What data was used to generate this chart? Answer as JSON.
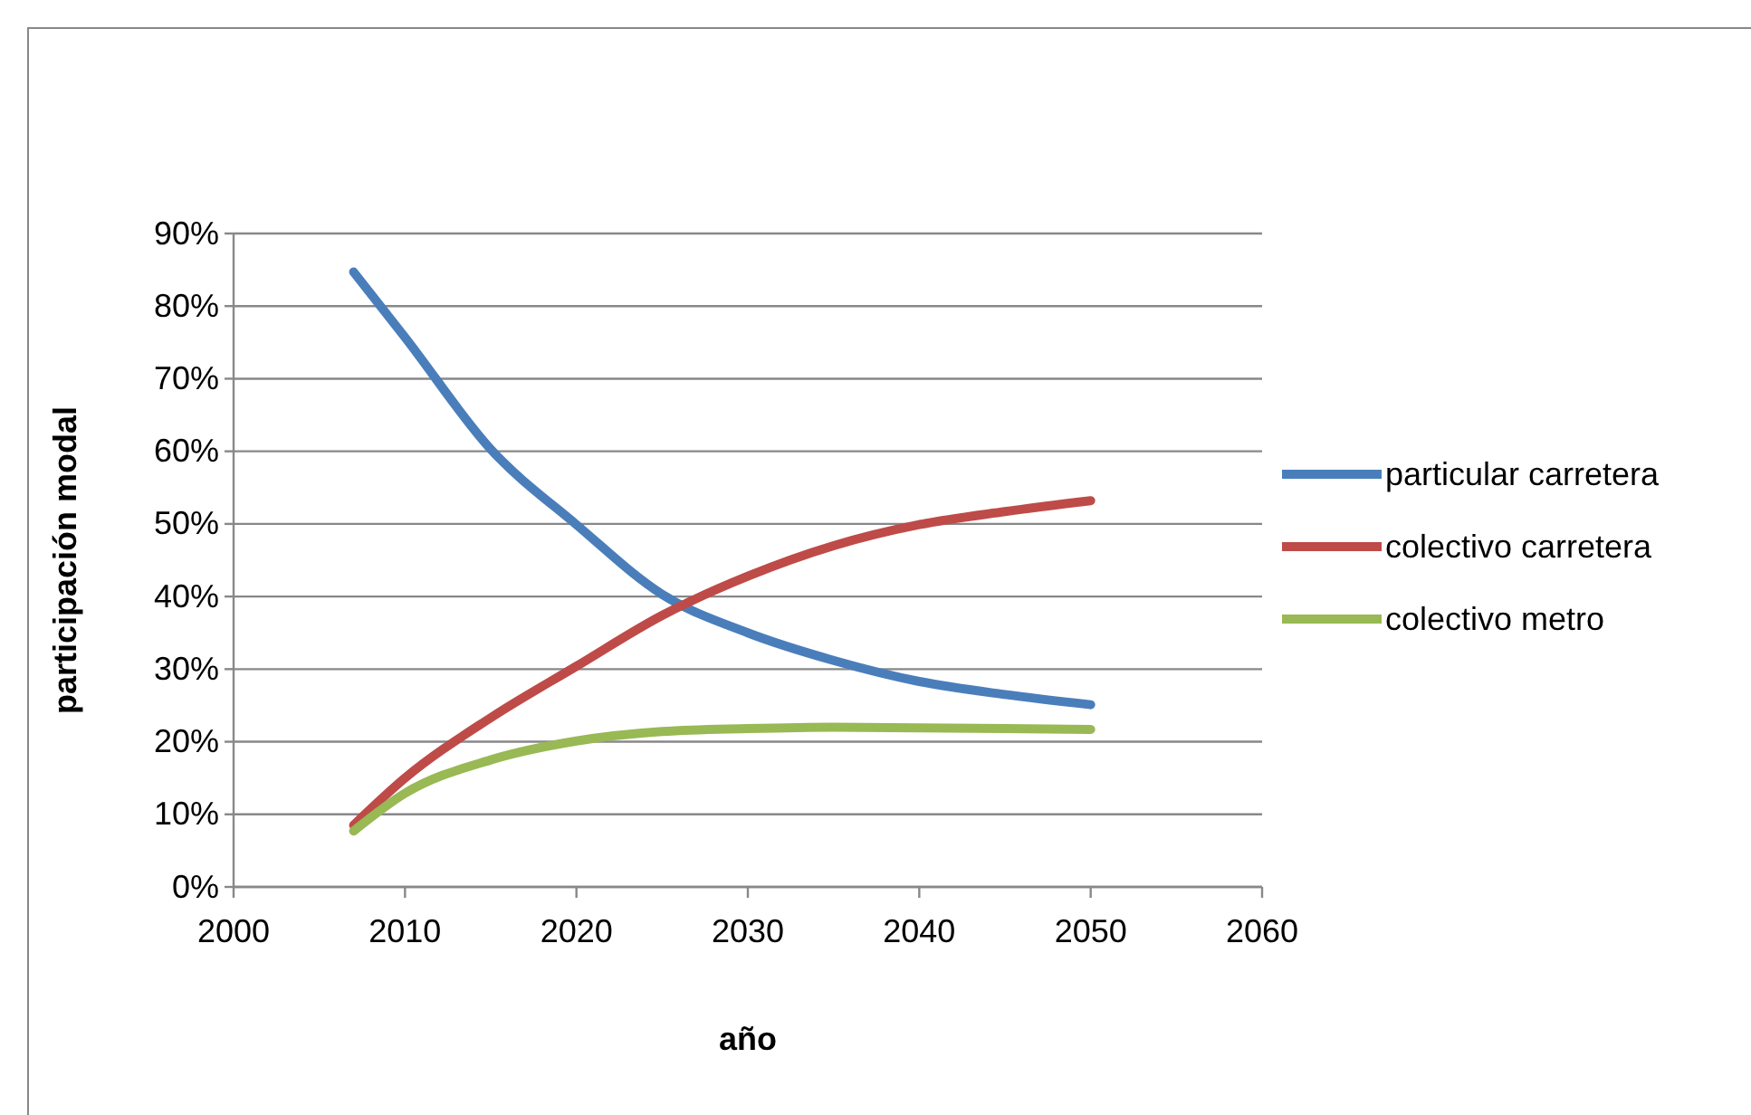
{
  "chart_data": {
    "type": "line",
    "xlabel": "año",
    "ylabel": "participación  modal",
    "x": [
      2007,
      2010,
      2015,
      2020,
      2025,
      2030,
      2035,
      2040,
      2045,
      2050
    ],
    "series": [
      {
        "name": "particular carretera",
        "color": "#4a7ebb",
        "values": [
          84.7,
          75.7,
          60.3,
          49.9,
          40.3,
          35,
          31.2,
          28.3,
          26.5,
          25.1
        ]
      },
      {
        "name": "colectivo carretera",
        "color": "#be4b48",
        "values": [
          8.5,
          15,
          23.3,
          30.4,
          37.4,
          42.8,
          47,
          49.9,
          51.7,
          53.2
        ]
      },
      {
        "name": "colectivo metro",
        "color": "#98b954",
        "values": [
          7.7,
          12.9,
          17.5,
          20.1,
          21.4,
          21.8,
          22,
          21.9,
          21.8,
          21.7
        ]
      }
    ],
    "xlim": [
      2000,
      2060
    ],
    "xticks": [
      2000,
      2010,
      2020,
      2030,
      2040,
      2050,
      2060
    ],
    "ylim": [
      0,
      90
    ],
    "yticks": [
      {
        "value": 0,
        "label": "0%"
      },
      {
        "value": 10,
        "label": "10%"
      },
      {
        "value": 20,
        "label": "20%"
      },
      {
        "value": 30,
        "label": "30%"
      },
      {
        "value": 40,
        "label": "40%"
      },
      {
        "value": 50,
        "label": "50%"
      },
      {
        "value": 60,
        "label": "60%"
      },
      {
        "value": 70,
        "label": "70%"
      },
      {
        "value": 80,
        "label": "80%"
      },
      {
        "value": 90,
        "label": "90%"
      }
    ],
    "grid": "y",
    "legend": "right",
    "marker": "none",
    "line_style": "solid"
  }
}
